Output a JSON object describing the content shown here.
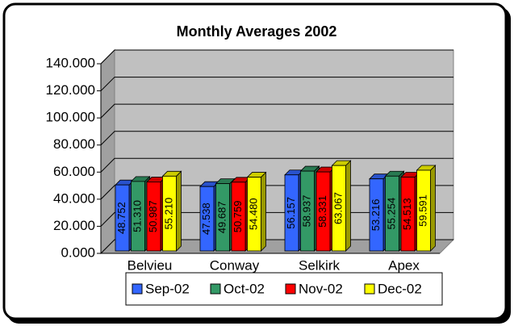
{
  "chart_data": {
    "type": "bar3d",
    "title": "Monthly Averages 2002",
    "categories": [
      "Belvieu",
      "Conway",
      "Selkirk",
      "Apex"
    ],
    "series": [
      {
        "name": "Sep-02",
        "color": "#3366ff",
        "values": [
          48.752,
          47.538,
          56.157,
          53.216
        ],
        "value_labels": [
          "48.752",
          "47.538",
          "56.157",
          "53.216"
        ]
      },
      {
        "name": "Oct-02",
        "color": "#339966",
        "values": [
          51.31,
          49.687,
          58.937,
          55.254
        ],
        "value_labels": [
          "51.310",
          "49.687",
          "58.937",
          "55.254"
        ]
      },
      {
        "name": "Nov-02",
        "color": "#ff0000",
        "values": [
          50.987,
          50.759,
          58.331,
          54.513
        ],
        "value_labels": [
          "50.987",
          "50.759",
          "58.331",
          "54.513"
        ]
      },
      {
        "name": "Dec-02",
        "color": "#ffff00",
        "values": [
          55.21,
          54.48,
          63.067,
          59.591
        ],
        "value_labels": [
          "55.210",
          "54.480",
          "63.067",
          "59.591"
        ]
      }
    ],
    "ylim": [
      0,
      140
    ],
    "yticks": [
      {
        "value": 0,
        "label": "0.000"
      },
      {
        "value": 20,
        "label": "20.000"
      },
      {
        "value": 40,
        "label": "40.000"
      },
      {
        "value": 60,
        "label": "60.000"
      },
      {
        "value": 80,
        "label": "80.000"
      },
      {
        "value": 100,
        "label": "100.000"
      },
      {
        "value": 120,
        "label": "120.000"
      },
      {
        "value": 140,
        "label": "140.000"
      }
    ],
    "grid": true,
    "legend": "bottom"
  }
}
